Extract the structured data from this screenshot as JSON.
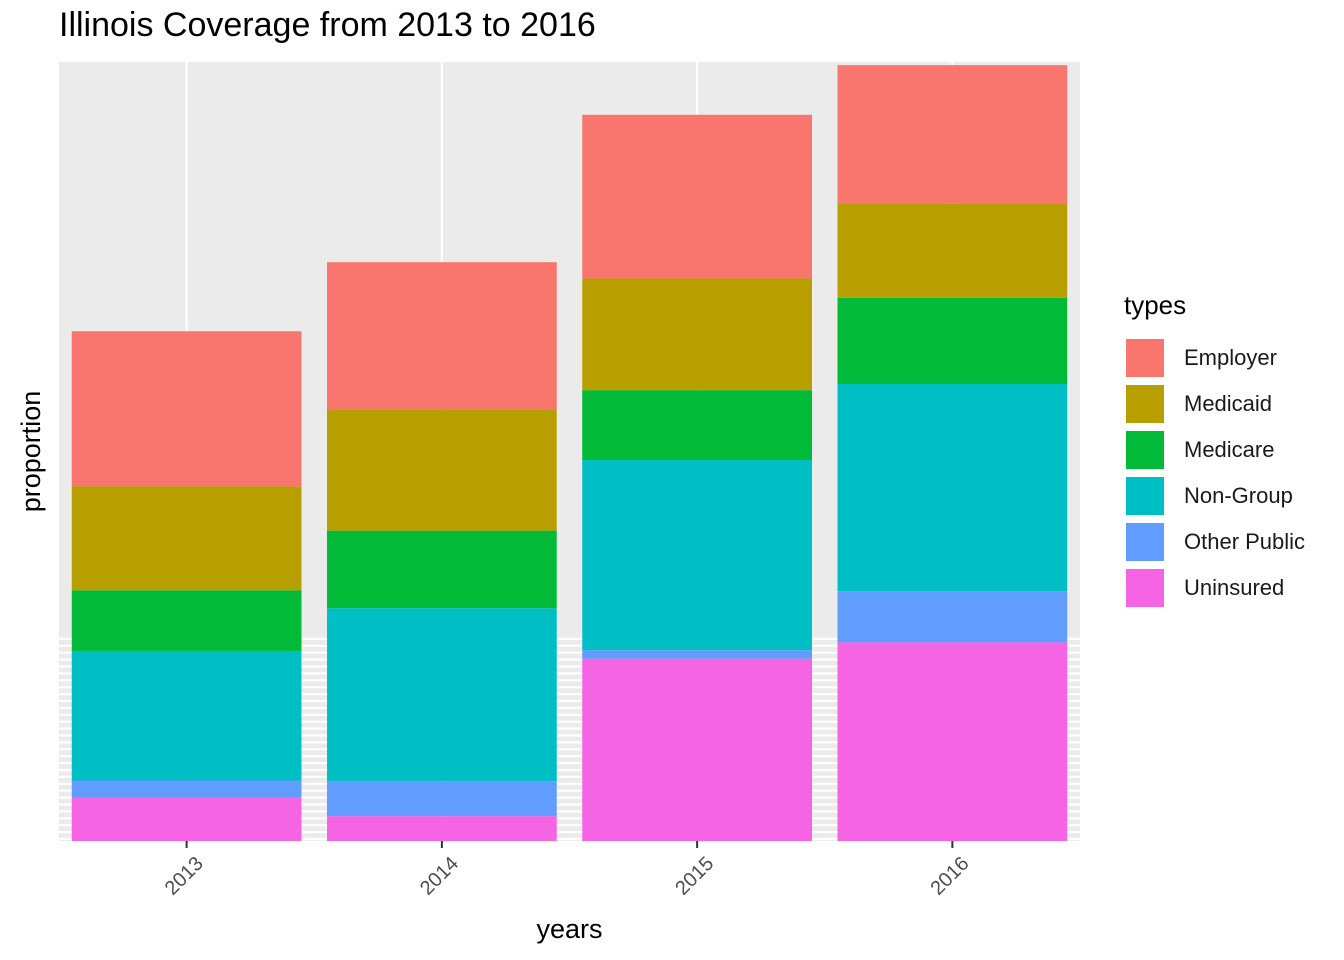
{
  "chart_data": {
    "type": "bar",
    "stacked": true,
    "title": "Illinois Coverage from 2013 to 2016",
    "xlabel": "years",
    "ylabel": "proportion",
    "y_ticks_labeled": false,
    "grid": "on",
    "legend_placement": "right",
    "legend_title": "types",
    "categories": [
      "2013",
      "2014",
      "2015",
      "2016"
    ],
    "series": [
      {
        "name": "Uninsured",
        "color": "#F564E3",
        "values": [
          0.056,
          0.032,
          0.235,
          0.256
        ]
      },
      {
        "name": "Other Public",
        "color": "#619CFF",
        "values": [
          0.022,
          0.045,
          0.011,
          0.066
        ]
      },
      {
        "name": "Non-Group",
        "color": "#00BFC4",
        "values": [
          0.167,
          0.223,
          0.245,
          0.267
        ]
      },
      {
        "name": "Medicare",
        "color": "#00BA38",
        "values": [
          0.078,
          0.1,
          0.09,
          0.111
        ]
      },
      {
        "name": "Medicaid",
        "color": "#B79F00",
        "values": [
          0.134,
          0.156,
          0.144,
          0.122
        ]
      },
      {
        "name": "Employer",
        "color": "#F8766D",
        "values": [
          0.2,
          0.19,
          0.211,
          0.178
        ]
      }
    ],
    "legend_order": [
      "Employer",
      "Medicaid",
      "Medicare",
      "Non-Group",
      "Other Public",
      "Uninsured"
    ],
    "ylim": [
      0,
      1.004
    ]
  }
}
